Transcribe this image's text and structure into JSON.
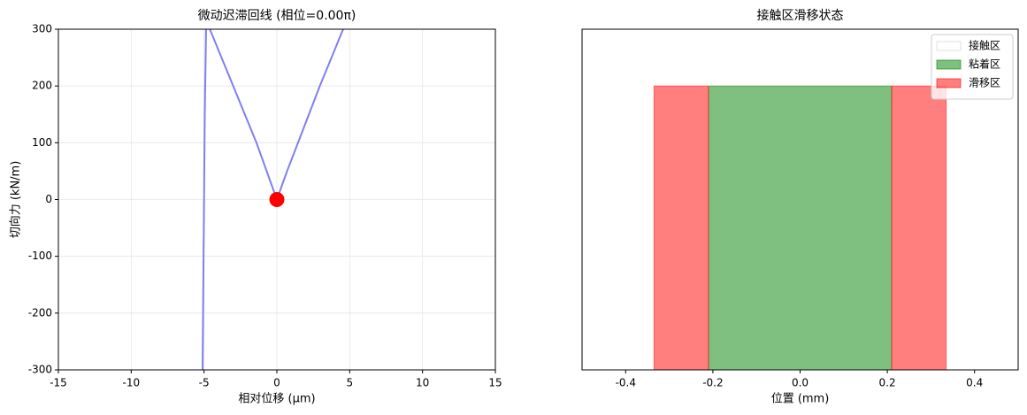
{
  "chart_data": [
    {
      "type": "line",
      "title": "微动迟滞回线 (相位=0.00π)",
      "x_label": "相对位移 (μm)",
      "y_label": "切向力 (kN/m)",
      "xlim": [
        -15,
        15
      ],
      "ylim": [
        -300,
        300
      ],
      "xticks": [
        -15,
        -10,
        -5,
        0,
        5,
        10,
        15
      ],
      "yticks": [
        -300,
        -200,
        -100,
        0,
        100,
        200,
        300
      ],
      "grid": true,
      "series": [
        {
          "color": "#7f7ff0",
          "x": [
            -5.1,
            -5.05,
            -5.0,
            -4.95,
            -4.86,
            null,
            -4.6,
            -3.8,
            -3.0,
            -2.2,
            -1.4,
            -0.7,
            0,
            0.7,
            1.45,
            2.2,
            2.95,
            3.75,
            4.55
          ],
          "values": [
            -300,
            -150,
            0,
            150,
            300,
            null,
            300,
            250,
            200,
            150,
            100,
            50,
            0,
            50,
            100,
            150,
            200,
            250,
            300
          ]
        }
      ],
      "points": {
        "color": "#ff0000",
        "x": [
          0
        ],
        "values": [
          0
        ]
      }
    },
    {
      "type": "span",
      "title": "接触区滑移状态",
      "x_label": "位置 (mm)",
      "xlim": [
        -0.5,
        0.5
      ],
      "ylim": [
        0,
        1.2
      ],
      "xticks": [
        -0.4,
        -0.2,
        {
          "value": 0,
          "label": "0.0"
        },
        0.2,
        0.4
      ],
      "legend": "upper right",
      "series": [
        {
          "name": "接触区",
          "color": "#ffffff",
          "spans": [
            [
              -0.335,
              0.335
            ]
          ],
          "values": [
            1
          ]
        },
        {
          "name": "粘着区",
          "color": "#008000",
          "spans": [
            [
              -0.21,
              0.21
            ]
          ],
          "values": [
            1
          ]
        },
        {
          "name": "滑移区",
          "color": "#ff0000",
          "spans": [
            [
              -0.335,
              -0.21
            ],
            [
              0.21,
              0.335
            ]
          ],
          "values": [
            1,
            1
          ]
        }
      ]
    }
  ]
}
